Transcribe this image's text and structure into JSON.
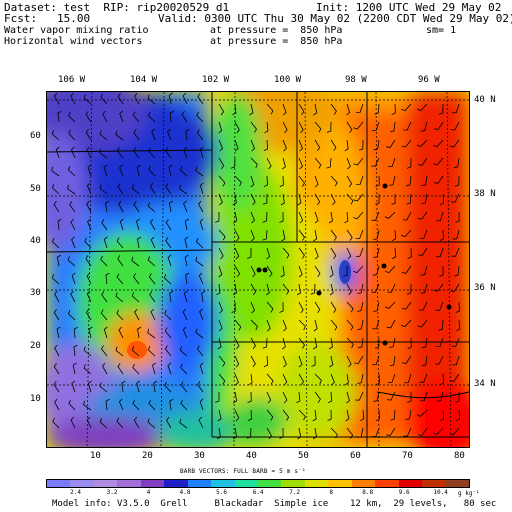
{
  "header": {
    "dataset": "Dataset: test  RIP: rip20020529 d1",
    "init": "Init: 1200 UTC Wed 29 May 02",
    "fcst": "Fcst:   15.00",
    "valid": "Valid: 0300 UTC Thu 30 May 02 (2200 CDT Wed 29 May 02)",
    "field1": "Water vapor mixing ratio",
    "pressure1": "at pressure =  850 hPa",
    "sm": "sm= 1",
    "field2": "Horizontal wind vectors",
    "pressure2": "at pressure =  850 hPa"
  },
  "lon_labels": [
    "106 W",
    "104 W",
    "102 W",
    "100 W",
    "98 W",
    "96 W"
  ],
  "lat_labels": [
    "40 N",
    "38 N",
    "36 N",
    "34 N"
  ],
  "x_ticks": [
    "10",
    "20",
    "30",
    "40",
    "50",
    "60",
    "70",
    "80"
  ],
  "y_ticks": [
    "10",
    "20",
    "30",
    "40",
    "50",
    "60"
  ],
  "barb_title": "BARB VECTORS:  FULL BARB = 5 m s⁻¹",
  "colorbar": {
    "labels": [
      "2.4",
      "3.2",
      "4",
      "4.8",
      "5.6",
      "6.4",
      "7.2",
      "8",
      "8.8",
      "9.6",
      "10.4"
    ],
    "units": "g kg⁻¹",
    "colors": [
      "#7b7bff",
      "#9a8cf0",
      "#b08ce0",
      "#a070d8",
      "#8040c0",
      "#2020c8",
      "#2080ff",
      "#20c0e0",
      "#20e0a0",
      "#40e040",
      "#a0e000",
      "#e0e000",
      "#ffc000",
      "#ff8000",
      "#ff4000",
      "#e00000",
      "#c03000",
      "#904020"
    ]
  },
  "footer": "Model info: V3.5.0  Grell     Blackadar  Simple ice    12 km,  29 levels,   80 sec"
}
